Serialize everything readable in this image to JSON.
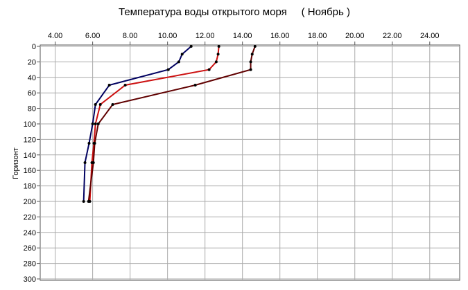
{
  "chart_data": {
    "type": "line",
    "title": "Температура воды открытого моря     ( Ноябрь )",
    "y_label": "Горизонт",
    "y": [
      0,
      10,
      20,
      30,
      50,
      75,
      100,
      125,
      150,
      200
    ],
    "series": [
      {
        "color": "#000060",
        "values": [
          11.26,
          10.78,
          10.6,
          10.04,
          6.89,
          6.15,
          6.0,
          5.81,
          5.59,
          5.52
        ]
      },
      {
        "color": "#cc1010",
        "values": [
          12.74,
          12.7,
          12.6,
          12.22,
          7.74,
          6.41,
          6.15,
          6.07,
          5.96,
          5.85
        ]
      },
      {
        "color": "#600000",
        "values": [
          14.67,
          14.52,
          14.44,
          14.44,
          11.48,
          7.07,
          6.3,
          6.11,
          6.04,
          5.78
        ]
      }
    ],
    "xlim": [
      3.2,
      25.6
    ],
    "xticks": [
      {
        "value": 4,
        "label": "4.00"
      },
      {
        "value": 6,
        "label": "6.00"
      },
      {
        "value": 8,
        "label": "8.00"
      },
      {
        "value": 10,
        "label": "10.00"
      },
      {
        "value": 12,
        "label": "12.00"
      },
      {
        "value": 14,
        "label": "14.00"
      },
      {
        "value": 16,
        "label": "16.00"
      },
      {
        "value": 18,
        "label": "18.00"
      },
      {
        "value": 20,
        "label": "20.00"
      },
      {
        "value": 22,
        "label": "22.00"
      },
      {
        "value": 24,
        "label": "24.00"
      }
    ],
    "ylim": [
      0,
      300
    ],
    "yticks": [
      0,
      20,
      40,
      60,
      80,
      100,
      120,
      140,
      160,
      180,
      200,
      220,
      240,
      260,
      280,
      300
    ],
    "y_inverted": true,
    "x_axis_position": "top",
    "grid": true
  }
}
